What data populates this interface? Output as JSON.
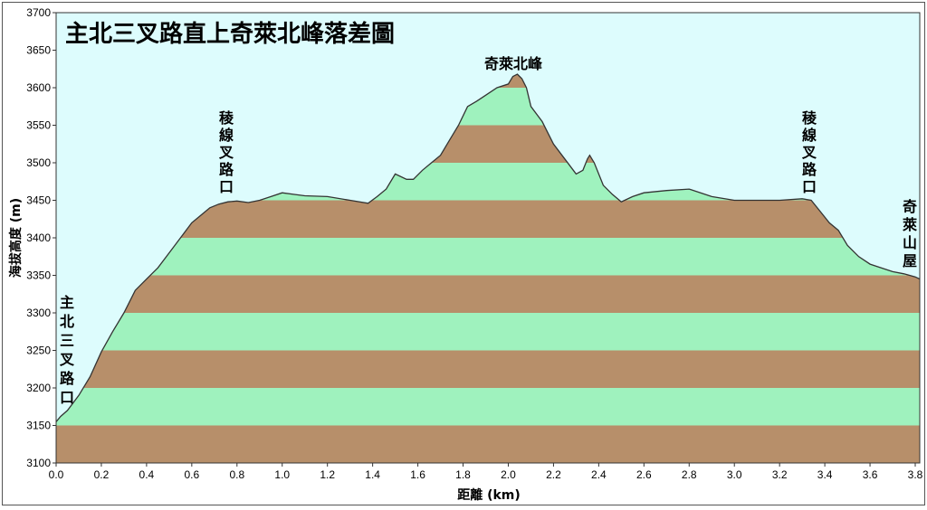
{
  "chart_data": {
    "type": "area",
    "title": "主北三叉路直上奇萊北峰落差圖",
    "xlabel": "距離  (km)",
    "ylabel": "海拔高度 (m)",
    "xlim": [
      0,
      3.82
    ],
    "ylim": [
      3100,
      3700
    ],
    "xticks": [
      "0.0",
      "0.2",
      "0.4",
      "0.6",
      "0.8",
      "1.0",
      "1.2",
      "1.4",
      "1.6",
      "1.8",
      "2.0",
      "2.2",
      "2.4",
      "2.6",
      "2.8",
      "3.0",
      "3.2",
      "3.4",
      "3.6",
      "3.8"
    ],
    "yticks": [
      "3100",
      "3150",
      "3200",
      "3250",
      "3300",
      "3350",
      "3400",
      "3450",
      "3500",
      "3550",
      "3600",
      "3650",
      "3700"
    ],
    "band_interval": 50,
    "colors": {
      "background": "#ddfcfd",
      "band_light": "#9ff2be",
      "band_dark": "#b78f6a",
      "profile_line": "#333333"
    },
    "x": [
      0.0,
      0.02,
      0.05,
      0.1,
      0.15,
      0.2,
      0.25,
      0.3,
      0.35,
      0.4,
      0.45,
      0.5,
      0.55,
      0.6,
      0.64,
      0.68,
      0.72,
      0.76,
      0.8,
      0.85,
      0.9,
      0.95,
      1.0,
      1.05,
      1.1,
      1.2,
      1.3,
      1.38,
      1.42,
      1.46,
      1.5,
      1.55,
      1.58,
      1.62,
      1.66,
      1.7,
      1.74,
      1.78,
      1.82,
      1.86,
      1.9,
      1.95,
      2.0,
      2.02,
      2.04,
      2.06,
      2.08,
      2.1,
      2.15,
      2.2,
      2.25,
      2.3,
      2.33,
      2.35,
      2.36,
      2.38,
      2.42,
      2.46,
      2.5,
      2.55,
      2.6,
      2.7,
      2.8,
      2.9,
      3.0,
      3.1,
      3.2,
      3.3,
      3.34,
      3.38,
      3.42,
      3.46,
      3.5,
      3.55,
      3.6,
      3.65,
      3.7,
      3.75,
      3.8,
      3.82
    ],
    "y": [
      3155,
      3162,
      3170,
      3190,
      3215,
      3248,
      3275,
      3300,
      3330,
      3345,
      3360,
      3380,
      3400,
      3420,
      3430,
      3440,
      3445,
      3448,
      3449,
      3447,
      3450,
      3455,
      3460,
      3458,
      3456,
      3455,
      3450,
      3446,
      3455,
      3465,
      3485,
      3478,
      3478,
      3490,
      3500,
      3510,
      3530,
      3550,
      3575,
      3582,
      3590,
      3600,
      3605,
      3615,
      3618,
      3612,
      3600,
      3575,
      3555,
      3525,
      3505,
      3485,
      3490,
      3505,
      3510,
      3500,
      3470,
      3458,
      3448,
      3455,
      3460,
      3463,
      3465,
      3455,
      3450,
      3450,
      3450,
      3452,
      3450,
      3435,
      3420,
      3410,
      3390,
      3375,
      3365,
      3360,
      3355,
      3352,
      3348,
      3345
    ]
  },
  "annotations": [
    {
      "text": "主北三叉路口"
    },
    {
      "text": "稜線叉路口"
    },
    {
      "text": "奇萊北峰"
    },
    {
      "text": "稜線叉路口"
    },
    {
      "text": "奇萊山屋"
    }
  ]
}
